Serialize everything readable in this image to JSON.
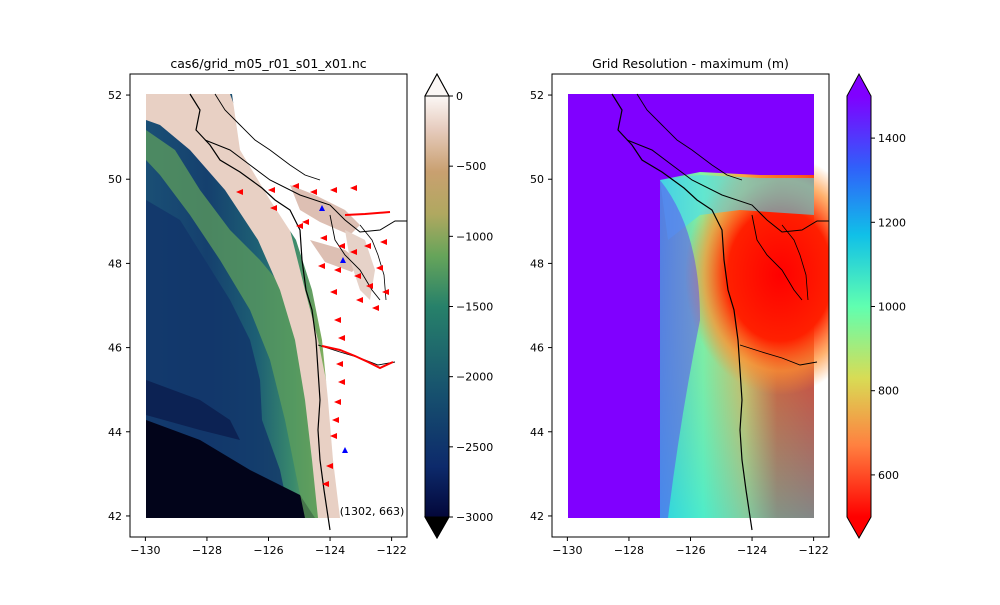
{
  "chart_data": [
    {
      "type": "heatmap",
      "title": "cas6/grid_m05_r01_s01_x01.nc",
      "xlim": [
        -130.5,
        -121.5
      ],
      "ylim": [
        41.5,
        52.5
      ],
      "xticks": [
        -130,
        -128,
        -126,
        -124,
        -122
      ],
      "xtick_labels": [
        "−130",
        "−128",
        "−126",
        "−124",
        "−122"
      ],
      "yticks": [
        42,
        44,
        46,
        48,
        50,
        52
      ],
      "ytick_labels": [
        "42",
        "44",
        "46",
        "48",
        "50",
        "52"
      ],
      "annotation": "(1302, 663)",
      "colormap": "topo (dark blue to green to tan to white)",
      "colorbar": {
        "range": [
          -3000,
          0
        ],
        "ticks": [
          0,
          -500,
          -1000,
          -1500,
          -2000,
          -2500,
          -3000
        ],
        "tick_labels": [
          "0",
          "−500",
          "−1000",
          "−1500",
          "−2000",
          "−2500",
          "−3000"
        ],
        "extend": "both",
        "colors": [
          "#03073a",
          "#0d2a6b",
          "#17526e",
          "#27816a",
          "#66a45a",
          "#b0a860",
          "#c9a070",
          "#e6cbbd",
          "#fbf7f5"
        ]
      },
      "river_markers_color": "#ff0000",
      "source_markers_color": "#0000ff",
      "grid": false
    },
    {
      "type": "heatmap",
      "title": "Grid Resolution - maximum (m)",
      "xlim": [
        -130.5,
        -121.5
      ],
      "ylim": [
        41.5,
        52.5
      ],
      "xticks": [
        -130,
        -128,
        -126,
        -124,
        -122
      ],
      "xtick_labels": [
        "−130",
        "−128",
        "−126",
        "−124",
        "−122"
      ],
      "yticks": [
        42,
        44,
        46,
        48,
        50,
        52
      ],
      "ytick_labels": [
        "42",
        "44",
        "46",
        "48",
        "50",
        "52"
      ],
      "colormap": "rainbow",
      "colorbar": {
        "range": [
          500,
          1500
        ],
        "ticks": [
          600,
          800,
          1000,
          1200,
          1400
        ],
        "tick_labels": [
          "600",
          "800",
          "1000",
          "1200",
          "1400"
        ],
        "extend": "both",
        "colors": [
          "#ff0000",
          "#ff8040",
          "#d8dc55",
          "#60ffb0",
          "#10c0e8",
          "#3060fa",
          "#8000ff"
        ]
      },
      "grid": false
    }
  ]
}
